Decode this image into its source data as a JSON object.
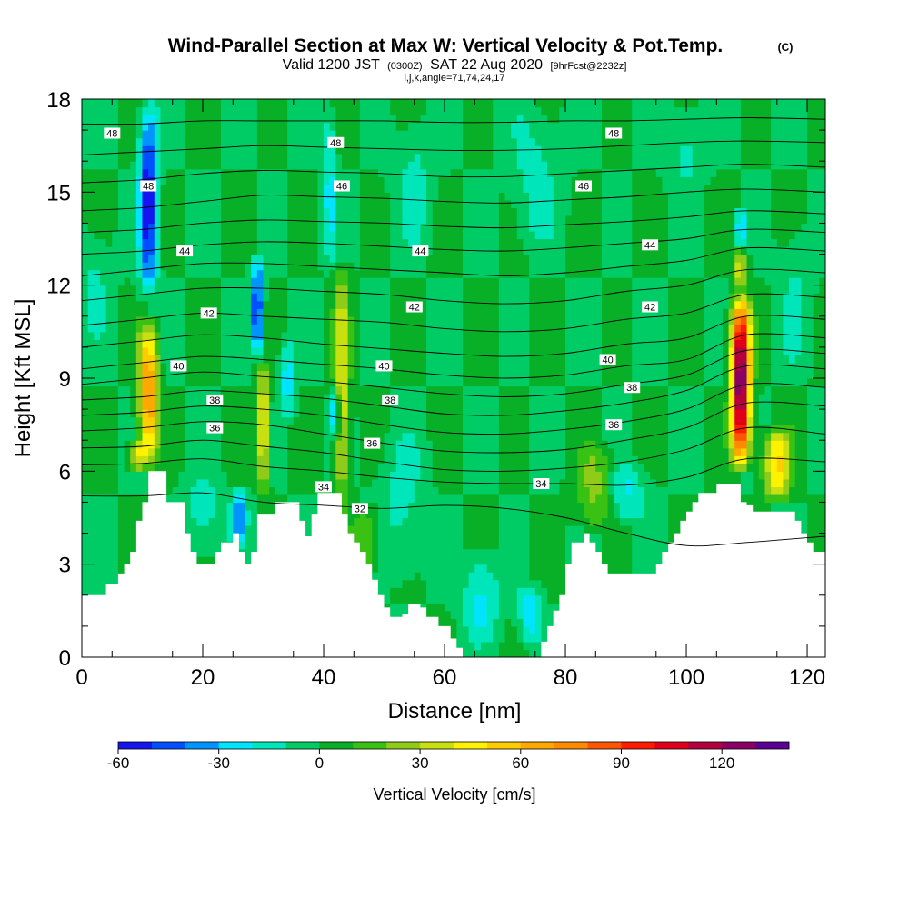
{
  "header": {
    "title": "Wind-Parallel Section at Max W: Vertical Velocity & Pot.Temp.",
    "copyright": "(C)",
    "valid_a": "Valid 1200 JST",
    "valid_b": "(0300Z)",
    "valid_c": "SAT 22 Aug 2020",
    "valid_d": "[9hrFcst@2232z]",
    "params": "i,j,k,angle=71,74,24,17"
  },
  "chart_data": {
    "type": "heatmap",
    "xlabel": "Distance [nm]",
    "ylabel": "Height [Kft MSL]",
    "xlim": [
      0,
      123
    ],
    "ylim": [
      0,
      18
    ],
    "x_ticks": [
      0,
      20,
      40,
      60,
      80,
      100,
      120
    ],
    "y_ticks": [
      0,
      3,
      6,
      9,
      12,
      15,
      18
    ],
    "colorbar": {
      "label": "Vertical Velocity [cm/s]",
      "tick_labels": [
        "-60",
        "-30",
        "0",
        "30",
        "60",
        "90",
        "120"
      ],
      "tick_values": [
        -60,
        -30,
        0,
        30,
        60,
        90,
        120
      ],
      "range": [
        -60,
        140
      ],
      "step": 10,
      "colors": [
        "#1515f0",
        "#0050ff",
        "#0094ff",
        "#00e4ff",
        "#00e6bb",
        "#00cc66",
        "#08b028",
        "#39c214",
        "#8fcc19",
        "#c8df10",
        "#fff200",
        "#ffcc00",
        "#ffa800",
        "#ff8a00",
        "#ff5500",
        "#ff1a00",
        "#e0001a",
        "#b4003c",
        "#8a0064",
        "#5a0094"
      ]
    },
    "background_w": 0,
    "terrain_kft": [
      [
        0,
        2.0
      ],
      [
        3,
        2.0
      ],
      [
        4,
        2.35
      ],
      [
        6,
        2.7
      ],
      [
        7,
        3.0
      ],
      [
        8,
        3.4
      ],
      [
        9,
        4.4
      ],
      [
        10,
        5.0
      ],
      [
        11,
        6.0
      ],
      [
        13,
        6.0
      ],
      [
        14,
        5.0
      ],
      [
        16,
        5.0
      ],
      [
        17,
        4.0
      ],
      [
        18,
        3.4
      ],
      [
        19,
        3.0
      ],
      [
        21,
        3.0
      ],
      [
        22,
        3.4
      ],
      [
        23,
        3.7
      ],
      [
        24,
        3.7
      ],
      [
        25,
        4.0
      ],
      [
        26,
        3.4
      ],
      [
        27,
        3.0
      ],
      [
        28,
        3.4
      ],
      [
        29,
        4.6
      ],
      [
        31,
        4.6
      ],
      [
        32,
        5.0
      ],
      [
        35,
        5.0
      ],
      [
        36,
        4.4
      ],
      [
        37,
        3.9
      ],
      [
        38,
        4.6
      ],
      [
        39,
        5.3
      ],
      [
        42,
        5.3
      ],
      [
        43,
        4.6
      ],
      [
        44,
        4.0
      ],
      [
        45,
        3.7
      ],
      [
        46,
        3.4
      ],
      [
        47,
        3.0
      ],
      [
        48,
        2.5
      ],
      [
        49,
        2.0
      ],
      [
        50,
        1.6
      ],
      [
        51,
        1.3
      ],
      [
        53,
        1.4
      ],
      [
        54,
        1.7
      ],
      [
        55,
        1.7
      ],
      [
        56,
        1.6
      ],
      [
        57,
        1.3
      ],
      [
        59,
        1.0
      ],
      [
        61,
        0.6
      ],
      [
        62,
        0.3
      ],
      [
        63,
        0.0
      ],
      [
        64,
        -0.3
      ],
      [
        74,
        -0.3
      ],
      [
        75,
        0.0
      ],
      [
        76,
        0.5
      ],
      [
        77,
        1.0
      ],
      [
        78,
        1.5
      ],
      [
        79,
        2.0
      ],
      [
        80,
        3.0
      ],
      [
        81,
        3.7
      ],
      [
        83,
        4.0
      ],
      [
        84,
        3.7
      ],
      [
        85,
        3.4
      ],
      [
        86,
        3.0
      ],
      [
        87,
        2.7
      ],
      [
        88,
        2.7
      ],
      [
        94,
        2.7
      ],
      [
        95,
        3.0
      ],
      [
        96,
        3.4
      ],
      [
        97,
        3.7
      ],
      [
        98,
        4.0
      ],
      [
        99,
        4.4
      ],
      [
        100,
        4.7
      ],
      [
        101,
        5.0
      ],
      [
        102,
        5.3
      ],
      [
        104,
        5.3
      ],
      [
        105,
        5.6
      ],
      [
        108,
        5.6
      ],
      [
        109,
        5.0
      ],
      [
        110,
        4.9
      ],
      [
        111,
        4.7
      ],
      [
        117,
        4.7
      ],
      [
        118,
        4.4
      ],
      [
        119,
        4.0
      ],
      [
        120,
        3.7
      ],
      [
        121,
        3.4
      ],
      [
        123,
        3.4
      ]
    ],
    "w_features": [
      {
        "x": 11,
        "z0": 6.0,
        "z1": 11.0,
        "peak": 72,
        "sx": 1.5
      },
      {
        "x": 11,
        "z0": 11.5,
        "z1": 18.0,
        "peak": -60,
        "sx": 1.4
      },
      {
        "x": 9,
        "z0": 6.0,
        "z1": 7.0,
        "peak": 38,
        "sx": 1.3
      },
      {
        "x": 30,
        "z0": 5.2,
        "z1": 9.6,
        "peak": 52,
        "sx": 0.9
      },
      {
        "x": 29,
        "z0": 9.6,
        "z1": 13.0,
        "peak": -58,
        "sx": 0.9
      },
      {
        "x": 43,
        "z0": 4.5,
        "z1": 12.8,
        "peak": 42,
        "sx": 1.2
      },
      {
        "x": 42,
        "z0": 7.0,
        "z1": 8.8,
        "peak": -48,
        "sx": 0.7
      },
      {
        "x": 41,
        "z0": 12.5,
        "z1": 18.0,
        "peak": -24,
        "sx": 1.1
      },
      {
        "x": 34,
        "z0": 7.5,
        "z1": 10.5,
        "peak": -26,
        "sx": 1.2
      },
      {
        "x": 26,
        "z0": 3.6,
        "z1": 5.6,
        "peak": -40,
        "sx": 1.2
      },
      {
        "x": 109,
        "z0": 6.0,
        "z1": 11.8,
        "peak": 135,
        "sx": 1.5
      },
      {
        "x": 109,
        "z0": 11.8,
        "z1": 13.2,
        "peak": 40,
        "sx": 1.0
      },
      {
        "x": 109,
        "z0": 13.2,
        "z1": 14.6,
        "peak": -26,
        "sx": 1.0
      },
      {
        "x": 115,
        "z0": 5.0,
        "z1": 7.5,
        "peak": 52,
        "sx": 2.2
      },
      {
        "x": 85,
        "z0": 4.0,
        "z1": 7.0,
        "peak": 24,
        "sx": 3.0
      },
      {
        "x": 90,
        "z0": 4.2,
        "z1": 6.4,
        "peak": -22,
        "sx": 3.2
      },
      {
        "x": 53,
        "z0": 2.3,
        "z1": 7.5,
        "peak": -14,
        "sx": 3.5
      },
      {
        "x": 66,
        "z0": 0.3,
        "z1": 3.5,
        "peak": -22,
        "sx": 3.0
      },
      {
        "x": 74,
        "z0": 0.3,
        "z1": 2.5,
        "peak": -26,
        "sx": 1.8
      },
      {
        "x": 47,
        "z0": 2.5,
        "z1": 5.0,
        "peak": 22,
        "sx": 2.5
      },
      {
        "x": 20,
        "z0": 3.2,
        "z1": 6.0,
        "peak": -16,
        "sx": 3.0
      },
      {
        "x": 75,
        "z0": 13.0,
        "z1": 18.0,
        "peak": -14,
        "sx": 4.0
      },
      {
        "x": 100,
        "z0": 15.0,
        "z1": 18.0,
        "peak": -14,
        "sx": 3.0
      },
      {
        "x": 55,
        "z0": 13.0,
        "z1": 17.5,
        "peak": -14,
        "sx": 3.0
      },
      {
        "x": 118,
        "z0": 9.0,
        "z1": 14.0,
        "peak": -12,
        "sx": 2.5
      },
      {
        "x": 2,
        "z0": 10.0,
        "z1": 14.0,
        "peak": -12,
        "sx": 2.5
      }
    ],
    "theta_contours": [
      {
        "label": "32",
        "z": [
          5.2,
          5.2,
          5.3,
          5.0,
          4.9,
          4.8,
          4.9,
          4.8,
          4.5,
          4.0,
          3.6,
          3.7,
          3.9
        ]
      },
      {
        "label": "34",
        "z": [
          6.2,
          6.25,
          6.4,
          6.15,
          6.0,
          5.8,
          5.65,
          5.6,
          5.6,
          5.55,
          5.8,
          6.4,
          6.3
        ]
      },
      {
        "label": "",
        "z": [
          6.75,
          6.8,
          7.0,
          6.8,
          6.6,
          6.3,
          6.05,
          6.0,
          6.1,
          6.3,
          6.7,
          7.4,
          7.2
        ]
      },
      {
        "label": "36",
        "z": [
          7.3,
          7.4,
          7.6,
          7.5,
          7.2,
          6.9,
          6.65,
          6.6,
          6.7,
          7.0,
          7.4,
          8.2,
          8.1
        ]
      },
      {
        "label": "",
        "z": [
          7.8,
          7.9,
          8.1,
          8.0,
          7.8,
          7.5,
          7.25,
          7.2,
          7.35,
          7.6,
          8.0,
          8.8,
          8.7
        ]
      },
      {
        "label": "38",
        "z": [
          8.3,
          8.4,
          8.6,
          8.5,
          8.35,
          8.1,
          7.85,
          7.8,
          7.95,
          8.2,
          8.6,
          9.4,
          9.3
        ]
      },
      {
        "label": "",
        "z": [
          8.8,
          9.0,
          9.2,
          9.05,
          8.9,
          8.7,
          8.5,
          8.4,
          8.5,
          8.8,
          9.1,
          9.9,
          9.8
        ]
      },
      {
        "label": "40",
        "z": [
          9.3,
          9.5,
          9.7,
          9.6,
          9.45,
          9.3,
          9.1,
          9.0,
          9.1,
          9.4,
          9.6,
          10.4,
          10.3
        ]
      },
      {
        "label": "",
        "z": [
          10.0,
          10.2,
          10.4,
          10.3,
          10.1,
          9.95,
          9.8,
          9.7,
          9.8,
          10.1,
          10.3,
          11.0,
          10.9
        ]
      },
      {
        "label": "42",
        "z": [
          10.7,
          10.9,
          11.1,
          11.0,
          10.9,
          10.8,
          10.6,
          10.5,
          10.6,
          10.9,
          11.1,
          11.7,
          11.6
        ]
      },
      {
        "label": "",
        "z": [
          11.5,
          11.7,
          11.9,
          11.9,
          11.8,
          11.7,
          11.5,
          11.4,
          11.5,
          11.8,
          12.0,
          12.5,
          12.4
        ]
      },
      {
        "label": "",
        "z": [
          12.3,
          12.5,
          12.7,
          12.7,
          12.6,
          12.5,
          12.4,
          12.3,
          12.4,
          12.6,
          12.8,
          13.2,
          13.1
        ]
      },
      {
        "label": "44",
        "z": [
          13.0,
          13.1,
          13.3,
          13.4,
          13.35,
          13.25,
          13.15,
          13.1,
          13.2,
          13.35,
          13.5,
          13.8,
          13.7
        ]
      },
      {
        "label": "",
        "z": [
          13.7,
          13.8,
          14.0,
          14.1,
          14.05,
          14.0,
          13.9,
          13.85,
          13.95,
          14.05,
          14.2,
          14.4,
          14.3
        ]
      },
      {
        "label": "46",
        "z": [
          14.4,
          14.5,
          14.7,
          14.9,
          14.85,
          14.8,
          14.7,
          14.65,
          14.75,
          14.85,
          15.0,
          15.1,
          15.0
        ]
      },
      {
        "label": "",
        "z": [
          15.3,
          15.4,
          15.6,
          15.7,
          15.65,
          15.6,
          15.5,
          15.5,
          15.6,
          15.7,
          15.8,
          15.9,
          15.8
        ]
      },
      {
        "label": "48",
        "z": [
          16.2,
          16.3,
          16.4,
          16.5,
          16.45,
          16.4,
          16.35,
          16.35,
          16.4,
          16.5,
          16.6,
          16.65,
          16.6
        ]
      },
      {
        "label": "",
        "z": [
          17.2,
          17.2,
          17.3,
          17.3,
          17.3,
          17.3,
          17.25,
          17.25,
          17.3,
          17.3,
          17.35,
          17.4,
          17.35
        ]
      }
    ],
    "theta_x": [
      0,
      10,
      20,
      30,
      40,
      50,
      60,
      70,
      80,
      90,
      100,
      110,
      123
    ],
    "contour_labels": [
      {
        "text": "48",
        "x": 5,
        "z": 16.9
      },
      {
        "text": "48",
        "x": 42,
        "z": 16.6
      },
      {
        "text": "48",
        "x": 88,
        "z": 16.9
      },
      {
        "text": "48",
        "x": 11,
        "z": 15.2
      },
      {
        "text": "46",
        "x": 43,
        "z": 15.2
      },
      {
        "text": "46",
        "x": 83,
        "z": 15.2
      },
      {
        "text": "44",
        "x": 17,
        "z": 13.1
      },
      {
        "text": "44",
        "x": 56,
        "z": 13.1
      },
      {
        "text": "44",
        "x": 94,
        "z": 13.3
      },
      {
        "text": "42",
        "x": 21,
        "z": 11.1
      },
      {
        "text": "42",
        "x": 55,
        "z": 11.3
      },
      {
        "text": "42",
        "x": 94,
        "z": 11.3
      },
      {
        "text": "40",
        "x": 16,
        "z": 9.4
      },
      {
        "text": "40",
        "x": 50,
        "z": 9.4
      },
      {
        "text": "40",
        "x": 87,
        "z": 9.6
      },
      {
        "text": "38",
        "x": 22,
        "z": 8.3
      },
      {
        "text": "38",
        "x": 51,
        "z": 8.3
      },
      {
        "text": "38",
        "x": 91,
        "z": 8.7
      },
      {
        "text": "36",
        "x": 22,
        "z": 7.4
      },
      {
        "text": "36",
        "x": 48,
        "z": 6.9
      },
      {
        "text": "36",
        "x": 88,
        "z": 7.5
      },
      {
        "text": "34",
        "x": 40,
        "z": 5.5
      },
      {
        "text": "34",
        "x": 76,
        "z": 5.6
      },
      {
        "text": "32",
        "x": 46,
        "z": 4.8
      }
    ]
  }
}
